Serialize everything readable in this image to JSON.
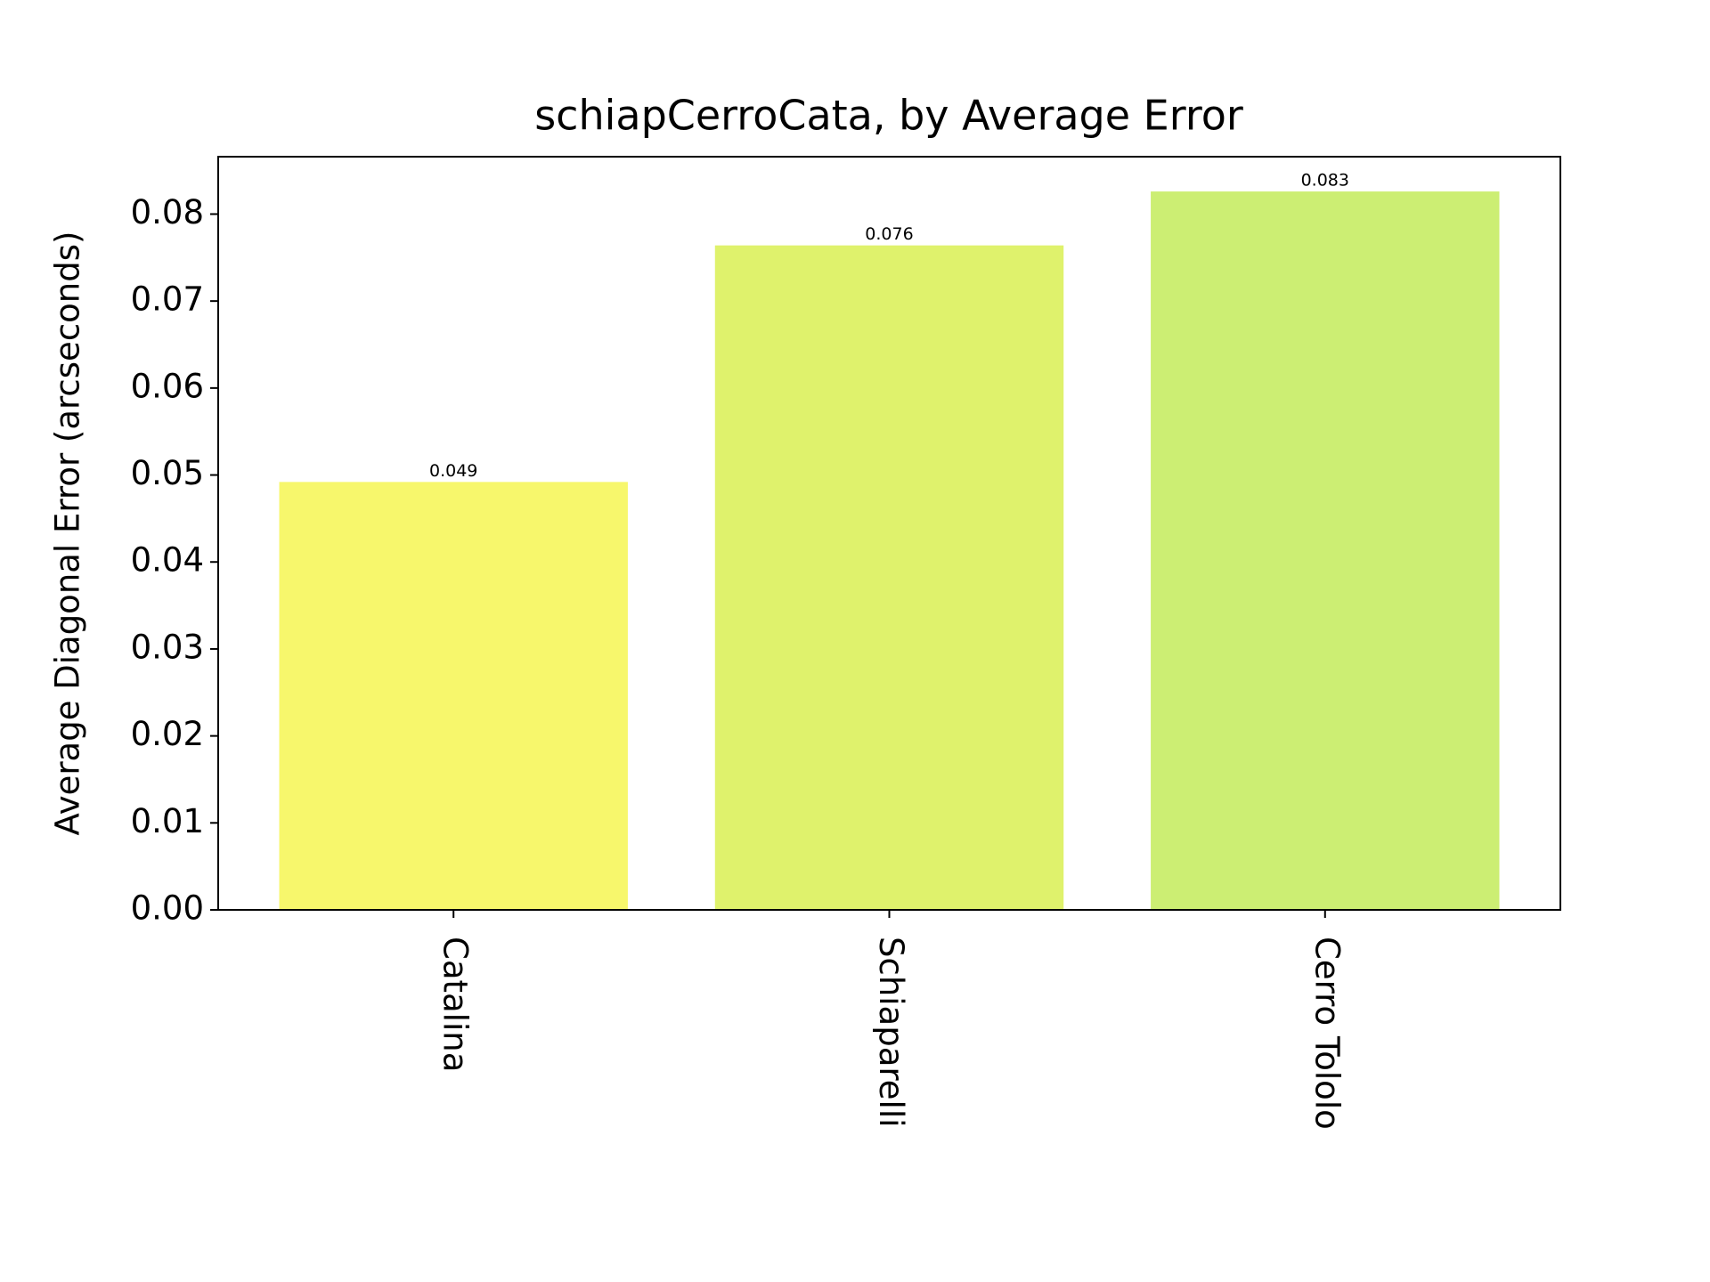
{
  "chart_data": {
    "type": "bar",
    "title": "schiapCerroCata, by Average Error",
    "y_label": "Average Diagonal Error (arcseconds)",
    "categories": [
      "Catalina",
      "Schiaparelli",
      "Cerro Tololo"
    ],
    "values": [
      0.0492,
      0.0764,
      0.0826
    ],
    "value_labels": [
      "0.049",
      "0.076",
      "0.083"
    ],
    "colors": [
      "#f7f76c",
      "#dff26c",
      "#ccee73"
    ],
    "ylim": [
      0,
      0.0866
    ],
    "yticks": [
      {
        "value": 0,
        "label": "0.00"
      },
      {
        "value": 0.01,
        "label": "0.01"
      },
      {
        "value": 0.02,
        "label": "0.02"
      },
      {
        "value": 0.03,
        "label": "0.03"
      },
      {
        "value": 0.04,
        "label": "0.04"
      },
      {
        "value": 0.05,
        "label": "0.05"
      },
      {
        "value": 0.06,
        "label": "0.06"
      },
      {
        "value": 0.07,
        "label": "0.07"
      },
      {
        "value": 0.08,
        "label": "0.08"
      }
    ],
    "grid": false
  }
}
